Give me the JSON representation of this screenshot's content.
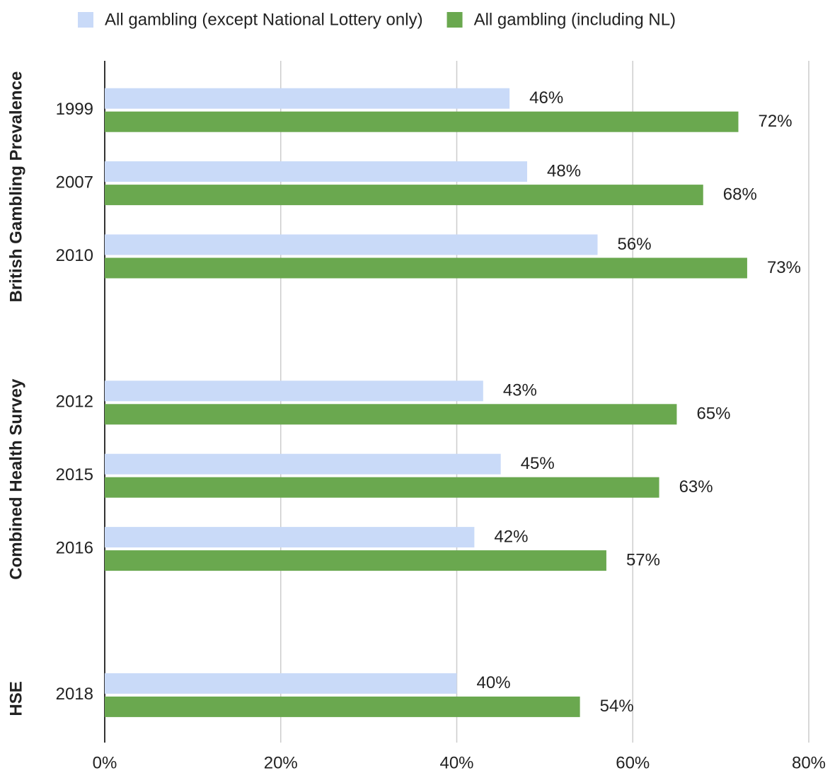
{
  "chart_data": {
    "type": "hbar",
    "categories": [
      "1999",
      "2007",
      "2010",
      null,
      "2012",
      "2015",
      "2016",
      null,
      "2018"
    ],
    "groups": [
      "British Gambling Prevalence",
      "Combined Health Survey",
      "HSE"
    ],
    "series": [
      {
        "name": "All gambling (except National Lottery only)",
        "color": "#c9daf8",
        "values": [
          46,
          48,
          56,
          null,
          43,
          45,
          42,
          null,
          40
        ],
        "value_labels": [
          "46%",
          "48%",
          "56%",
          null,
          "43%",
          "45%",
          "42%",
          null,
          "40%"
        ]
      },
      {
        "name": "All gambling (including NL)",
        "color": "#6aa84f",
        "values": [
          72,
          68,
          73,
          null,
          65,
          63,
          57,
          null,
          54
        ],
        "value_labels": [
          "72%",
          "68%",
          "73%",
          null,
          "65%",
          "63%",
          "57%",
          null,
          "54%"
        ]
      }
    ],
    "xlim": [
      0,
      80
    ],
    "xticks": [
      {
        "value": 0,
        "label": "0%"
      },
      {
        "value": 20,
        "label": "20%"
      },
      {
        "value": 40,
        "label": "40%"
      },
      {
        "value": 60,
        "label": "60%"
      },
      {
        "value": 80,
        "label": "80%"
      }
    ],
    "grid": true,
    "legend": "top"
  }
}
